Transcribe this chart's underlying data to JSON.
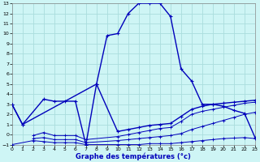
{
  "title": "Graphe des températures (°c)",
  "bg_color": "#cef5f5",
  "grid_color": "#aadddd",
  "line_color": "#0000bb",
  "xlim": [
    0,
    23
  ],
  "ylim": [
    -1,
    13
  ],
  "xticks": [
    0,
    1,
    2,
    3,
    4,
    5,
    6,
    7,
    8,
    9,
    10,
    11,
    12,
    13,
    14,
    15,
    16,
    17,
    18,
    19,
    20,
    21,
    22,
    23
  ],
  "yticks": [
    -1,
    0,
    1,
    2,
    3,
    4,
    5,
    6,
    7,
    8,
    9,
    10,
    11,
    12,
    13
  ],
  "main_x": [
    0,
    1,
    8,
    9,
    10,
    11,
    12,
    13,
    14,
    15,
    16,
    17,
    18,
    19,
    20,
    21,
    22,
    23
  ],
  "main_y": [
    3,
    1,
    5,
    9.8,
    10,
    12,
    13,
    13,
    13,
    11.7,
    6.5,
    5.3,
    3,
    3,
    2.8,
    2.4,
    2.1,
    -0.3
  ],
  "line2_x": [
    0,
    1,
    3,
    4,
    5,
    6,
    7,
    8,
    10,
    11,
    12,
    13,
    14,
    15,
    16,
    17,
    18,
    19,
    20,
    21,
    22,
    23
  ],
  "line2_y": [
    3,
    1,
    3.5,
    3.3,
    3.3,
    3.3,
    -1,
    5,
    0.3,
    0.5,
    0.7,
    0.9,
    1.0,
    1.1,
    1.8,
    2.5,
    2.8,
    3.0,
    3.1,
    3.2,
    3.3,
    3.4
  ],
  "low1_x": [
    0,
    2,
    3,
    4,
    5,
    6,
    7,
    10,
    11,
    12,
    13,
    14,
    15,
    16,
    17,
    18,
    19,
    20,
    21,
    22,
    23
  ],
  "low1_y": [
    -1,
    -0.6,
    -0.7,
    -0.8,
    -0.8,
    -0.8,
    -1,
    -1,
    -1,
    -1,
    -0.9,
    -0.9,
    -0.9,
    -0.8,
    -0.7,
    -0.6,
    -0.5,
    -0.4,
    -0.35,
    -0.3,
    -0.4
  ],
  "low2_x": [
    2,
    3,
    4,
    5,
    6,
    7,
    10,
    11,
    12,
    13,
    14,
    15,
    16,
    17,
    18,
    19,
    20,
    21,
    22,
    23
  ],
  "low2_y": [
    -0.4,
    -0.3,
    -0.5,
    -0.5,
    -0.5,
    -0.8,
    -0.6,
    -0.5,
    -0.4,
    -0.3,
    -0.2,
    -0.1,
    0.1,
    0.5,
    0.8,
    1.1,
    1.4,
    1.7,
    2.0,
    2.2
  ],
  "low3_x": [
    2,
    3,
    4,
    5,
    6,
    7,
    10,
    11,
    12,
    13,
    14,
    15,
    16,
    17,
    18,
    19,
    20,
    21,
    22,
    23
  ],
  "low3_y": [
    -0.1,
    0.2,
    -0.1,
    -0.1,
    -0.1,
    -0.5,
    -0.2,
    0.0,
    0.2,
    0.4,
    0.6,
    0.7,
    1.3,
    2.0,
    2.3,
    2.5,
    2.7,
    2.9,
    3.1,
    3.2
  ]
}
